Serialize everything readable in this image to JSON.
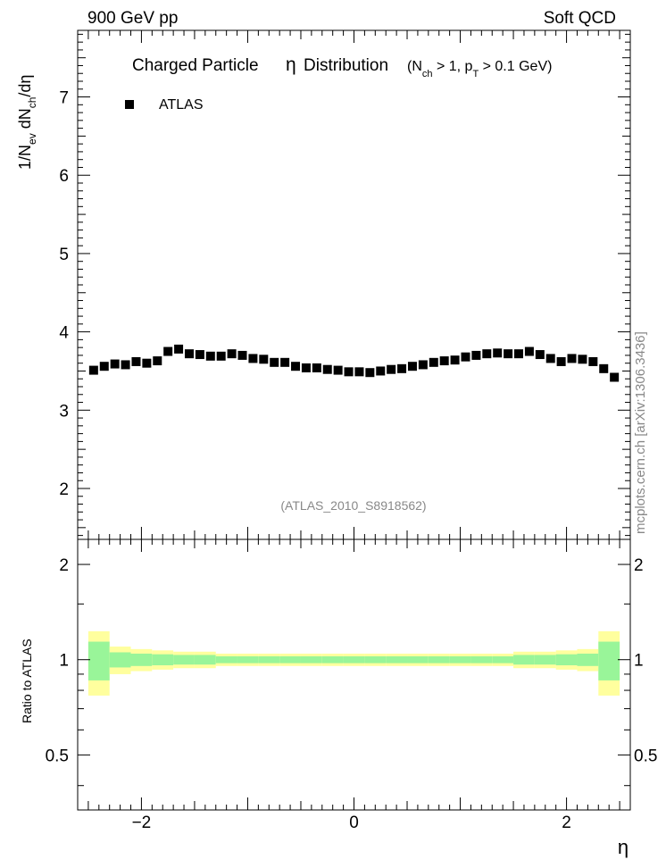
{
  "header": {
    "left": "900 GeV pp",
    "right": "Soft QCD"
  },
  "side_label": "mcplots.cern.ch [arXiv:1306.3436]",
  "chart_data": [
    {
      "type": "scatter",
      "title": {
        "main": "Charged Particle",
        "eta": "η",
        "rest": "Distribution",
        "cuts": "(N_ch > 1, p_T > 0.1 GeV)"
      },
      "ylabel": "1/N_ev dN_ch/dη",
      "xlim": [
        -2.6,
        2.6
      ],
      "ylim": [
        1.35,
        7.85
      ],
      "yticks": [
        2,
        3,
        4,
        5,
        6,
        7
      ],
      "ytick_labels": [
        "2",
        "3",
        "4",
        "5",
        "6",
        "7"
      ],
      "legend": {
        "position": "top-left",
        "entries": [
          "ATLAS"
        ]
      },
      "watermark": "(ATLAS_2010_S8918562)",
      "series": [
        {
          "name": "ATLAS",
          "marker": "square",
          "color": "#000000",
          "x": [
            -2.45,
            -2.35,
            -2.25,
            -2.15,
            -2.05,
            -1.95,
            -1.85,
            -1.75,
            -1.65,
            -1.55,
            -1.45,
            -1.35,
            -1.25,
            -1.15,
            -1.05,
            -0.95,
            -0.85,
            -0.75,
            -0.65,
            -0.55,
            -0.45,
            -0.35,
            -0.25,
            -0.15,
            -0.05,
            0.05,
            0.15,
            0.25,
            0.35,
            0.45,
            0.55,
            0.65,
            0.75,
            0.85,
            0.95,
            1.05,
            1.15,
            1.25,
            1.35,
            1.45,
            1.55,
            1.65,
            1.75,
            1.85,
            1.95,
            2.05,
            2.15,
            2.25,
            2.35,
            2.45
          ],
          "y": [
            3.51,
            3.56,
            3.59,
            3.58,
            3.62,
            3.6,
            3.63,
            3.75,
            3.78,
            3.72,
            3.71,
            3.69,
            3.69,
            3.72,
            3.7,
            3.66,
            3.65,
            3.61,
            3.61,
            3.56,
            3.54,
            3.54,
            3.52,
            3.51,
            3.49,
            3.49,
            3.48,
            3.5,
            3.52,
            3.53,
            3.56,
            3.58,
            3.61,
            3.63,
            3.64,
            3.68,
            3.7,
            3.72,
            3.73,
            3.72,
            3.72,
            3.75,
            3.71,
            3.66,
            3.62,
            3.66,
            3.65,
            3.62,
            3.53,
            3.42
          ]
        }
      ]
    },
    {
      "type": "area",
      "ylabel": "Ratio to ATLAS",
      "xlabel": "η",
      "xlim": [
        -2.6,
        2.6
      ],
      "ylim": [
        0.335,
        2.4
      ],
      "yscale": "log",
      "xticks": [
        -2,
        0,
        2
      ],
      "xtick_labels": [
        "−2",
        "0",
        "2"
      ],
      "yticks": [
        0.5,
        1,
        2
      ],
      "ytick_labels": [
        "0.5",
        "1",
        "2"
      ],
      "bands": {
        "bin_edges": [
          -2.5,
          -2.3,
          -2.1,
          -1.9,
          -1.7,
          -1.5,
          -1.3,
          -1.1,
          -0.9,
          -0.7,
          -0.5,
          -0.3,
          -0.1,
          0.1,
          0.3,
          0.5,
          0.7,
          0.9,
          1.1,
          1.3,
          1.5,
          1.7,
          1.9,
          2.1,
          2.3,
          2.5
        ],
        "yellow_color": "#ffff9e",
        "green_color": "#99f599",
        "yellow_halfwidth": [
          0.23,
          0.1,
          0.08,
          0.07,
          0.06,
          0.06,
          0.045,
          0.045,
          0.045,
          0.045,
          0.045,
          0.045,
          0.045,
          0.045,
          0.045,
          0.045,
          0.045,
          0.045,
          0.045,
          0.045,
          0.06,
          0.06,
          0.07,
          0.08,
          0.23
        ],
        "green_halfwidth": [
          0.14,
          0.055,
          0.045,
          0.04,
          0.035,
          0.035,
          0.025,
          0.025,
          0.025,
          0.025,
          0.025,
          0.025,
          0.025,
          0.025,
          0.025,
          0.025,
          0.025,
          0.025,
          0.025,
          0.025,
          0.035,
          0.035,
          0.04,
          0.045,
          0.14
        ]
      }
    }
  ]
}
